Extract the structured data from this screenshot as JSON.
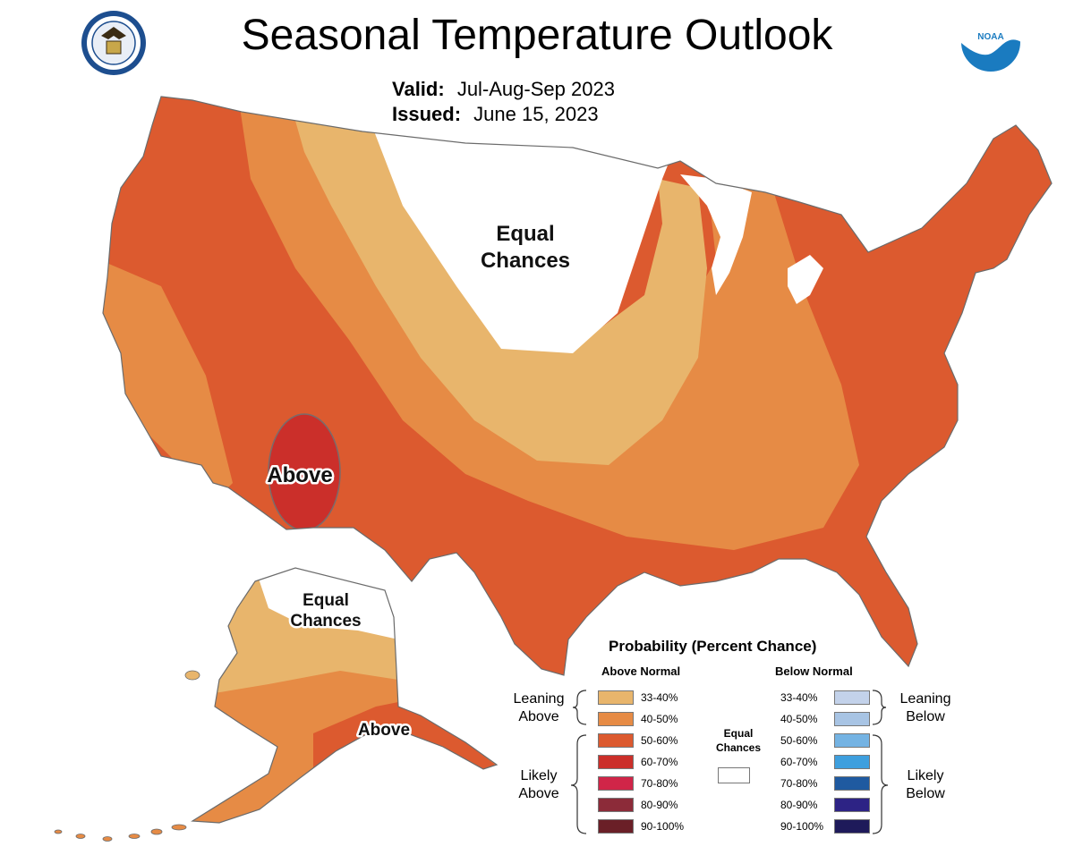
{
  "title": "Seasonal Temperature Outlook",
  "valid": {
    "label": "Valid:",
    "value": "Jul-Aug-Sep 2023"
  },
  "issued": {
    "label": "Issued:",
    "value": "June 15, 2023"
  },
  "map_labels": {
    "conus_equal_chances_line1": "Equal",
    "conus_equal_chances_line2": "Chances",
    "conus_above": "Above",
    "alaska_equal_chances_line1": "Equal",
    "alaska_equal_chances_line2": "Chances",
    "alaska_above": "Above"
  },
  "logos": {
    "left": "doc-seal-icon",
    "right": "noaa-logo-icon",
    "noaa_text": "NOAA"
  },
  "legend": {
    "title": "Probability (Percent Chance)",
    "above_header": "Above Normal",
    "below_header": "Below Normal",
    "equal_chances": "Equal Chances",
    "equal_chances_line1": "Equal",
    "equal_chances_line2": "Chances",
    "equal_chances_color": "#ffffff",
    "leaning_above": [
      "Leaning",
      "Above"
    ],
    "likely_above": [
      "Likely",
      "Above"
    ],
    "leaning_below": [
      "Leaning",
      "Below"
    ],
    "likely_below": [
      "Likely",
      "Below"
    ],
    "above": [
      {
        "range": "33-40%",
        "color": "#e8b56c"
      },
      {
        "range": "40-50%",
        "color": "#e68b45"
      },
      {
        "range": "50-60%",
        "color": "#dc5a2f"
      },
      {
        "range": "60-70%",
        "color": "#cb2f2a"
      },
      {
        "range": "70-80%",
        "color": "#d02548"
      },
      {
        "range": "80-90%",
        "color": "#8c2b39"
      },
      {
        "range": "90-100%",
        "color": "#6a1f27"
      }
    ],
    "below": [
      {
        "range": "33-40%",
        "color": "#c3d2ea"
      },
      {
        "range": "40-50%",
        "color": "#a8c4e4"
      },
      {
        "range": "50-60%",
        "color": "#74b3e3"
      },
      {
        "range": "60-70%",
        "color": "#3e9fde"
      },
      {
        "range": "70-80%",
        "color": "#1f5aa0"
      },
      {
        "range": "80-90%",
        "color": "#2d2385"
      },
      {
        "range": "90-100%",
        "color": "#1e1a5a"
      }
    ]
  }
}
